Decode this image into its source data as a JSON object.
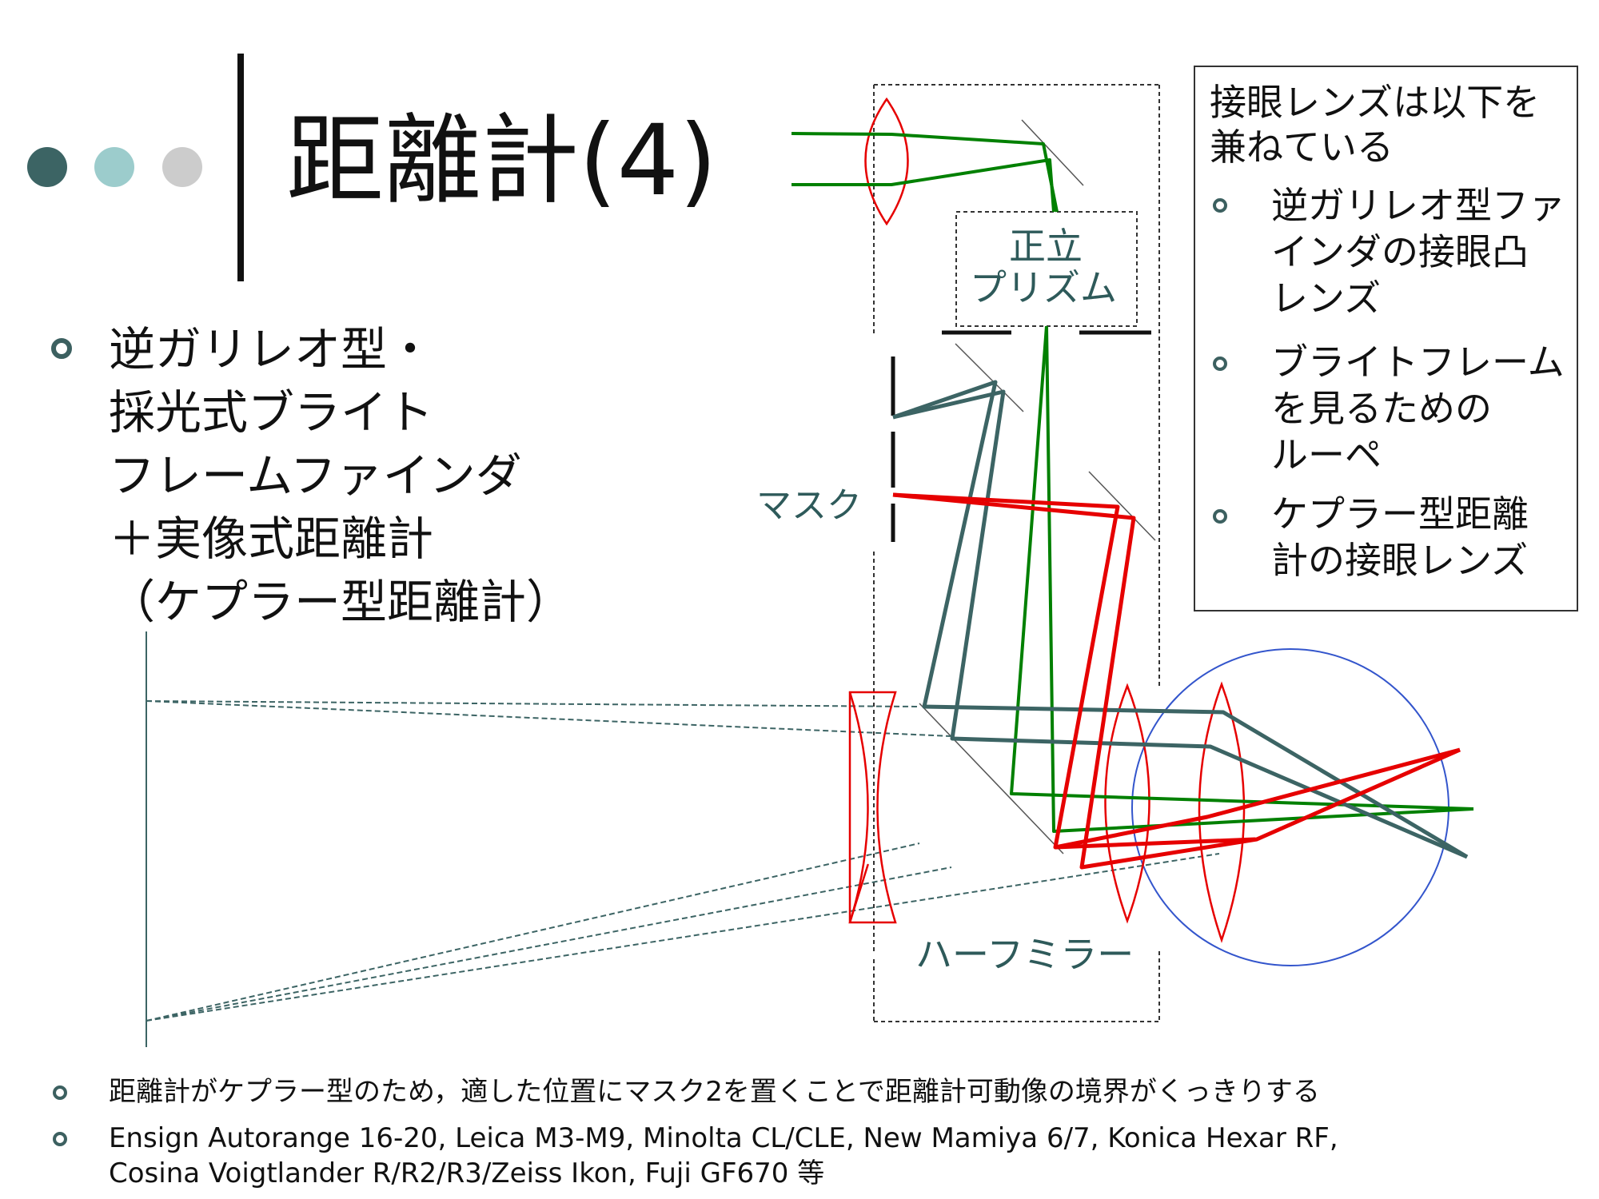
{
  "slide": {
    "title": "距離計(4)",
    "main_text": [
      "逆ガリレオ型・",
      "採光式ブライト",
      "フレームファインダ",
      "＋実像式距離計",
      "（ケプラー型距離計）"
    ]
  },
  "infobox": {
    "heading": [
      "接眼レンズは以下を",
      "兼ねている"
    ],
    "items": [
      [
        "逆ガリレオ型ファ",
        "インダの接眼凸",
        "レンズ"
      ],
      [
        "ブライトフレーム",
        "を見るための",
        "ルーペ"
      ],
      [
        "ケプラー型距離",
        "計の接眼レンズ"
      ]
    ]
  },
  "diagram": {
    "label_prism": [
      "正立",
      "プリズム"
    ],
    "label_mask": "マスク",
    "label_half_mirror": "ハーフミラー"
  },
  "footer": {
    "line1": "距離計がケプラー型のため，適した位置にマスク2を置くことで距離計可動像の境界がくっきりする",
    "line2": [
      "Ensign Autorange 16-20, Leica M3-M9, Minolta CL/CLE, New Mamiya 6/7, Konica Hexar RF,",
      "Cosina Voigtlander R/R2/R3/Zeiss Ikon, Fuji GF670 等"
    ]
  },
  "colors": {
    "dot1": "#3c6464",
    "dot2": "#9ccccc",
    "dot3": "#cccccc",
    "green_ray": "#008000",
    "red_ray": "#e60000",
    "teal_ray": "#3c6464",
    "circle": "#3355cc"
  }
}
